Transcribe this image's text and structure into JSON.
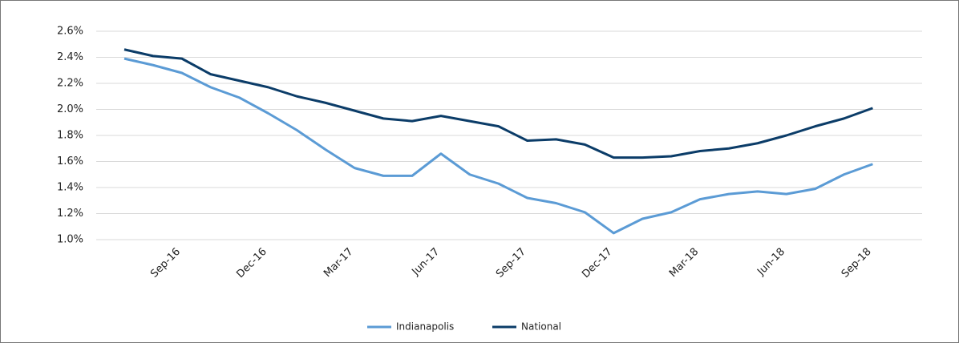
{
  "chart_data": {
    "type": "line",
    "categories": [
      null,
      null,
      "Sep-16",
      null,
      null,
      "Dec-16",
      null,
      null,
      "Mar-17",
      null,
      null,
      "Jun-17",
      null,
      null,
      "Sep-17",
      null,
      null,
      "Dec-17",
      null,
      null,
      "Mar-18",
      null,
      null,
      "Jun-18",
      null,
      null,
      "Sep-18"
    ],
    "series": [
      {
        "name": "Indianapolis",
        "color": "#5b9bd5",
        "values": [
          2.39,
          2.34,
          2.28,
          2.17,
          2.09,
          1.97,
          1.84,
          1.69,
          1.55,
          1.49,
          1.49,
          1.66,
          1.5,
          1.43,
          1.32,
          1.28,
          1.21,
          1.05,
          1.16,
          1.21,
          1.31,
          1.35,
          1.37,
          1.35,
          1.39,
          1.5,
          1.58
        ]
      },
      {
        "name": "National",
        "color": "#0b3c68",
        "values": [
          2.46,
          2.41,
          2.39,
          2.27,
          2.22,
          2.17,
          2.1,
          2.05,
          1.99,
          1.93,
          1.91,
          1.95,
          1.91,
          1.87,
          1.76,
          1.77,
          1.73,
          1.63,
          1.63,
          1.64,
          1.68,
          1.7,
          1.74,
          1.8,
          1.87,
          1.93,
          2.01
        ]
      }
    ],
    "ylim": [
      1.0,
      2.6
    ],
    "yticks": [
      {
        "value": 1.0,
        "label": "1.0%"
      },
      {
        "value": 1.2,
        "label": "1.2%"
      },
      {
        "value": 1.4,
        "label": "1.4%"
      },
      {
        "value": 1.6,
        "label": "1.6%"
      },
      {
        "value": 1.8,
        "label": "1.8%"
      },
      {
        "value": 2.0,
        "label": "2.0%"
      },
      {
        "value": 2.2,
        "label": "2.2%"
      },
      {
        "value": 2.4,
        "label": "2.4%"
      },
      {
        "value": 2.6,
        "label": "2.6%"
      }
    ],
    "grid": true,
    "legend": "bottom"
  }
}
